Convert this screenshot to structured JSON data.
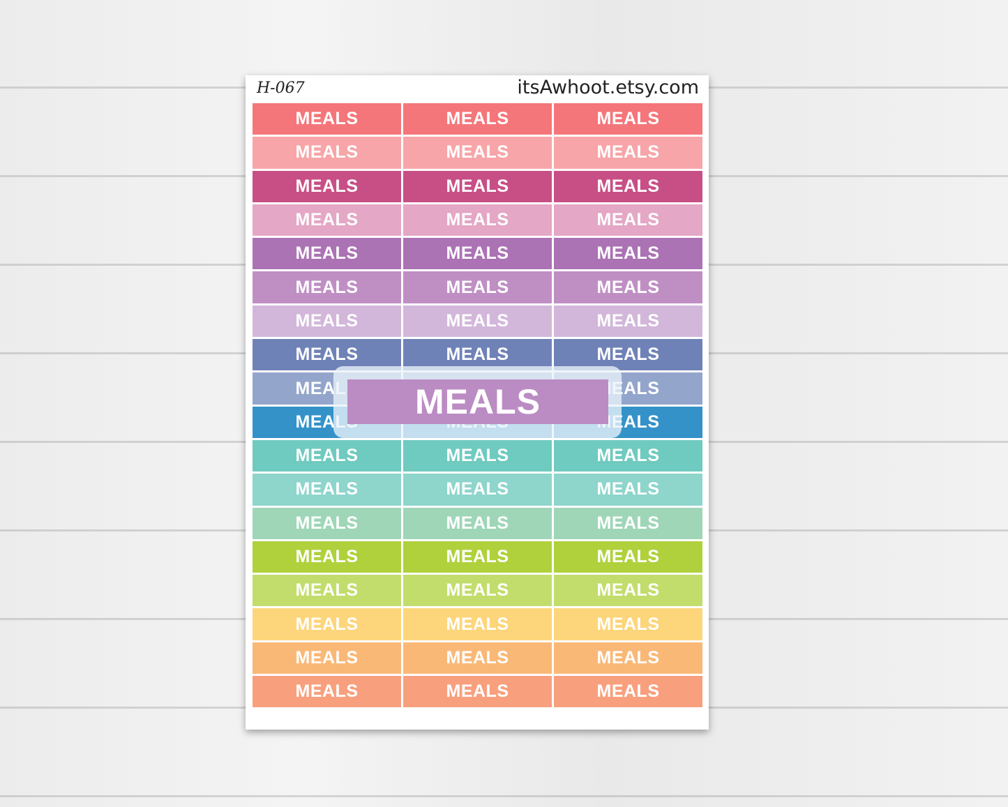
{
  "sheet": {
    "code": "H-067",
    "site": "itsAwhoot.etsy.com"
  },
  "sticker_label": "MEALS",
  "columns": 3,
  "row_colors": [
    "#f4767a",
    "#f7a5a8",
    "#c84f86",
    "#e4a7c5",
    "#ab72b4",
    "#bf8fc4",
    "#d2b7da",
    "#6f82b7",
    "#93a5cb",
    "#3492c8",
    "#6fcabf",
    "#8ed5cc",
    "#9fd6b8",
    "#b0d13c",
    "#c3dd6c",
    "#fdd57a",
    "#fab877",
    "#f8a07e"
  ],
  "preview": {
    "label": "MEALS",
    "color": "#bb8cc3"
  }
}
